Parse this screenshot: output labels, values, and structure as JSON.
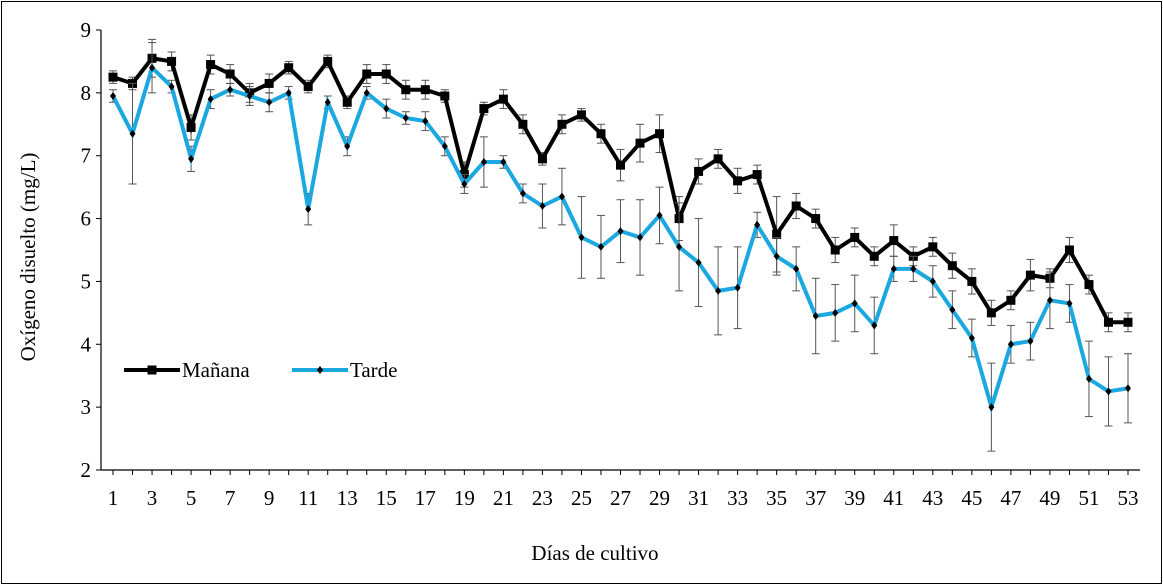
{
  "chart_data": {
    "type": "line",
    "title": "",
    "xlabel": "Días  de cultivo",
    "ylabel": "Oxígeno  disuelto  (mg/L)",
    "ylim": [
      2,
      9
    ],
    "yticks": [
      2,
      3,
      4,
      5,
      6,
      7,
      8,
      9
    ],
    "xlim": [
      1,
      53
    ],
    "xtick_labels": [
      "1",
      "3",
      "5",
      "7",
      "9",
      "11",
      "13",
      "15",
      "17",
      "19",
      "21",
      "23",
      "25",
      "27",
      "29",
      "31",
      "33",
      "35",
      "37",
      "39",
      "41",
      "43",
      "45",
      "47",
      "49",
      "51",
      "53"
    ],
    "grid": false,
    "legend_position": "lower-left",
    "x": [
      1,
      2,
      3,
      4,
      5,
      6,
      7,
      8,
      9,
      10,
      11,
      12,
      13,
      14,
      15,
      16,
      17,
      18,
      19,
      20,
      21,
      22,
      23,
      24,
      25,
      26,
      27,
      28,
      29,
      30,
      31,
      32,
      33,
      34,
      35,
      36,
      37,
      38,
      39,
      40,
      41,
      42,
      43,
      44,
      45,
      46,
      47,
      48,
      49,
      50,
      51,
      52,
      53
    ],
    "series": [
      {
        "name": "Mañana",
        "color": "#000000",
        "marker": "square",
        "values": [
          8.25,
          8.15,
          8.55,
          8.5,
          7.45,
          8.45,
          8.3,
          8.0,
          8.15,
          8.4,
          8.1,
          8.5,
          7.85,
          8.3,
          8.3,
          8.05,
          8.05,
          7.95,
          6.7,
          7.75,
          7.9,
          7.5,
          6.95,
          7.5,
          7.65,
          7.35,
          6.85,
          7.2,
          7.35,
          6.0,
          6.75,
          6.95,
          6.6,
          6.7,
          5.75,
          6.2,
          6.0,
          5.5,
          5.7,
          5.4,
          5.65,
          5.4,
          5.55,
          5.25,
          5.0,
          4.5,
          4.7,
          5.1,
          5.05,
          5.5,
          4.95,
          4.35,
          4.35
        ],
        "errors": [
          0.1,
          0.1,
          0.3,
          0.15,
          0.2,
          0.15,
          0.15,
          0.15,
          0.15,
          0.1,
          0.1,
          0.1,
          0.1,
          0.15,
          0.15,
          0.15,
          0.15,
          0.1,
          0.2,
          0.1,
          0.15,
          0.15,
          0.1,
          0.15,
          0.1,
          0.15,
          0.25,
          0.3,
          0.3,
          0.35,
          0.2,
          0.15,
          0.2,
          0.15,
          0.6,
          0.2,
          0.15,
          0.2,
          0.15,
          0.15,
          0.25,
          0.15,
          0.15,
          0.2,
          0.2,
          0.2,
          0.15,
          0.25,
          0.15,
          0.2,
          0.15,
          0.15,
          0.15
        ]
      },
      {
        "name": "Tarde",
        "color": "#1BA8E0",
        "marker": "diamond",
        "values": [
          7.95,
          7.35,
          8.4,
          8.1,
          6.95,
          7.9,
          8.05,
          7.95,
          7.85,
          8.0,
          6.15,
          7.85,
          7.15,
          8.0,
          7.75,
          7.6,
          7.55,
          7.15,
          6.55,
          6.9,
          6.9,
          6.4,
          6.2,
          6.35,
          5.7,
          5.55,
          5.8,
          5.7,
          6.05,
          5.55,
          5.3,
          4.85,
          4.9,
          5.9,
          5.4,
          5.2,
          4.45,
          4.5,
          4.65,
          4.3,
          5.2,
          5.2,
          5.0,
          4.55,
          4.1,
          3.0,
          4.0,
          4.05,
          4.7,
          4.65,
          3.45,
          3.25,
          3.3
        ],
        "errors": [
          0.1,
          0.8,
          0.4,
          0.1,
          0.2,
          0.15,
          0.1,
          0.15,
          0.15,
          0.1,
          0.25,
          0.1,
          0.15,
          0.1,
          0.15,
          0.1,
          0.15,
          0.15,
          0.15,
          0.4,
          0.1,
          0.15,
          0.35,
          0.45,
          0.65,
          0.5,
          0.5,
          0.6,
          0.45,
          0.7,
          0.7,
          0.7,
          0.65,
          0.2,
          0.3,
          0.35,
          0.6,
          0.45,
          0.45,
          0.45,
          0.2,
          0.2,
          0.25,
          0.3,
          0.3,
          0.7,
          0.3,
          0.3,
          0.45,
          0.3,
          0.6,
          0.55,
          0.55
        ]
      }
    ]
  }
}
